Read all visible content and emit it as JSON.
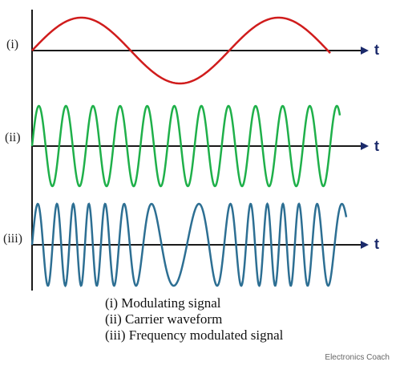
{
  "rows": [
    {
      "label": "(i)",
      "color": "#d01c1c",
      "kind": "modulating"
    },
    {
      "label": "(ii)",
      "color": "#1fb04a",
      "kind": "carrier"
    },
    {
      "label": "(iii)",
      "color": "#2d6f93",
      "kind": "fm"
    }
  ],
  "axis_label": "t",
  "legend": [
    "(i)   Modulating signal",
    "(ii)  Carrier waveform",
    "(iii) Frequency modulated signal"
  ],
  "credit": "Electronics Coach",
  "colors": {
    "axis": "#1a1a1a",
    "arrow": "#1b2a6b"
  }
}
